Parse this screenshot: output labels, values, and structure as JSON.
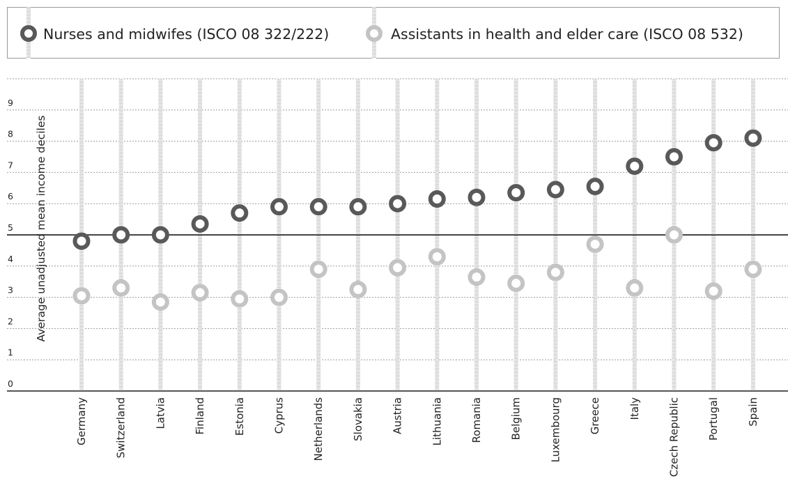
{
  "legend": {
    "nurses_label": "Nurses and midwifes (ISCO 08 322/222)",
    "assistants_label": "Assistants in health and elder care (ISCO 08 532)"
  },
  "colors": {
    "nurses": "#595959",
    "assistants": "#c4c4c4"
  },
  "chart_data": {
    "type": "scatter",
    "title": "",
    "xlabel": "",
    "ylabel": "Average unadjusted mean income deciles",
    "ylim": [
      0,
      10
    ],
    "yticks": [
      "0",
      "1",
      "2",
      "3",
      "4",
      "5",
      "6",
      "7",
      "8",
      "9"
    ],
    "reference_line": 5,
    "grid": true,
    "legend_position": "top",
    "categories": [
      "Germany",
      "Switzerland",
      "Latvia",
      "Finland",
      "Estonia",
      "Cyprus",
      "Netherlands",
      "Slovakia",
      "Austria",
      "Lithuania",
      "Romania",
      "Belgium",
      "Luxembourg",
      "Greece",
      "Italy",
      "Czech Republic",
      "Portugal",
      "Spain"
    ],
    "series": [
      {
        "name": "Nurses and midwifes (ISCO 08 322/222)",
        "values": [
          4.8,
          5.0,
          5.0,
          5.35,
          5.7,
          5.9,
          5.9,
          5.9,
          6.0,
          6.15,
          6.2,
          6.35,
          6.45,
          6.55,
          7.2,
          7.5,
          7.95,
          8.1
        ]
      },
      {
        "name": "Assistants in health and elder care (ISCO 08 532)",
        "values": [
          3.05,
          3.3,
          2.85,
          3.15,
          2.95,
          3.0,
          3.9,
          3.25,
          3.95,
          4.3,
          3.65,
          3.45,
          3.8,
          4.7,
          3.3,
          5.0,
          3.2,
          3.9
        ]
      }
    ]
  }
}
